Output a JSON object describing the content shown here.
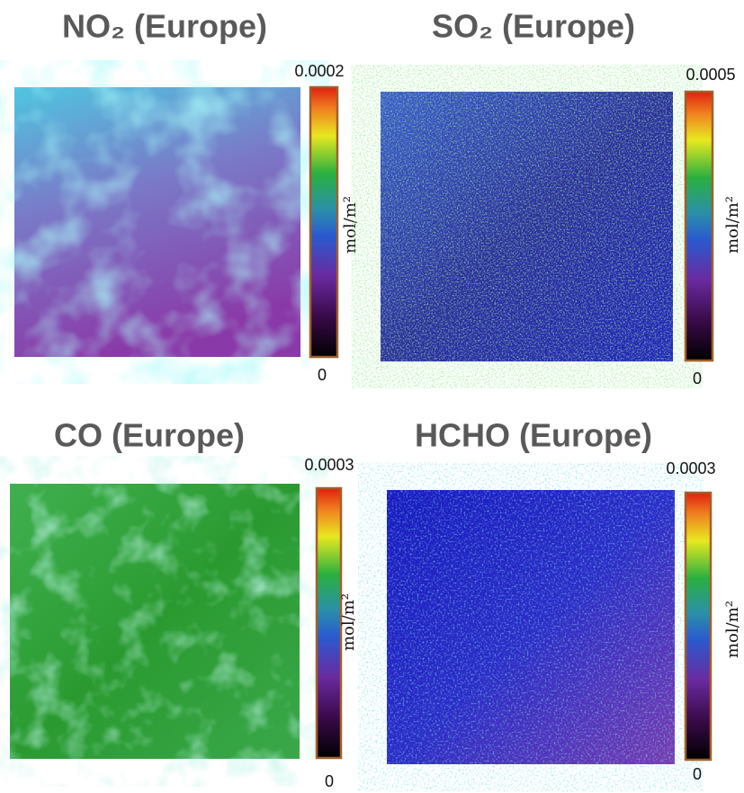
{
  "panels": [
    {
      "title": "NO₂ (Europe)",
      "unit": "mol/m²",
      "max": 0.0002,
      "min": 0
    },
    {
      "title": "SO₂ (Europe)",
      "unit": "mol/m²",
      "max": 0.0005,
      "min": 0
    },
    {
      "title": "CO (Europe)",
      "unit": "mol/m²",
      "max": 0.0003,
      "min": 0
    },
    {
      "title": "HCHO (Europe)",
      "unit": "mol/m²",
      "max": 0.0003,
      "min": 0
    }
  ]
}
